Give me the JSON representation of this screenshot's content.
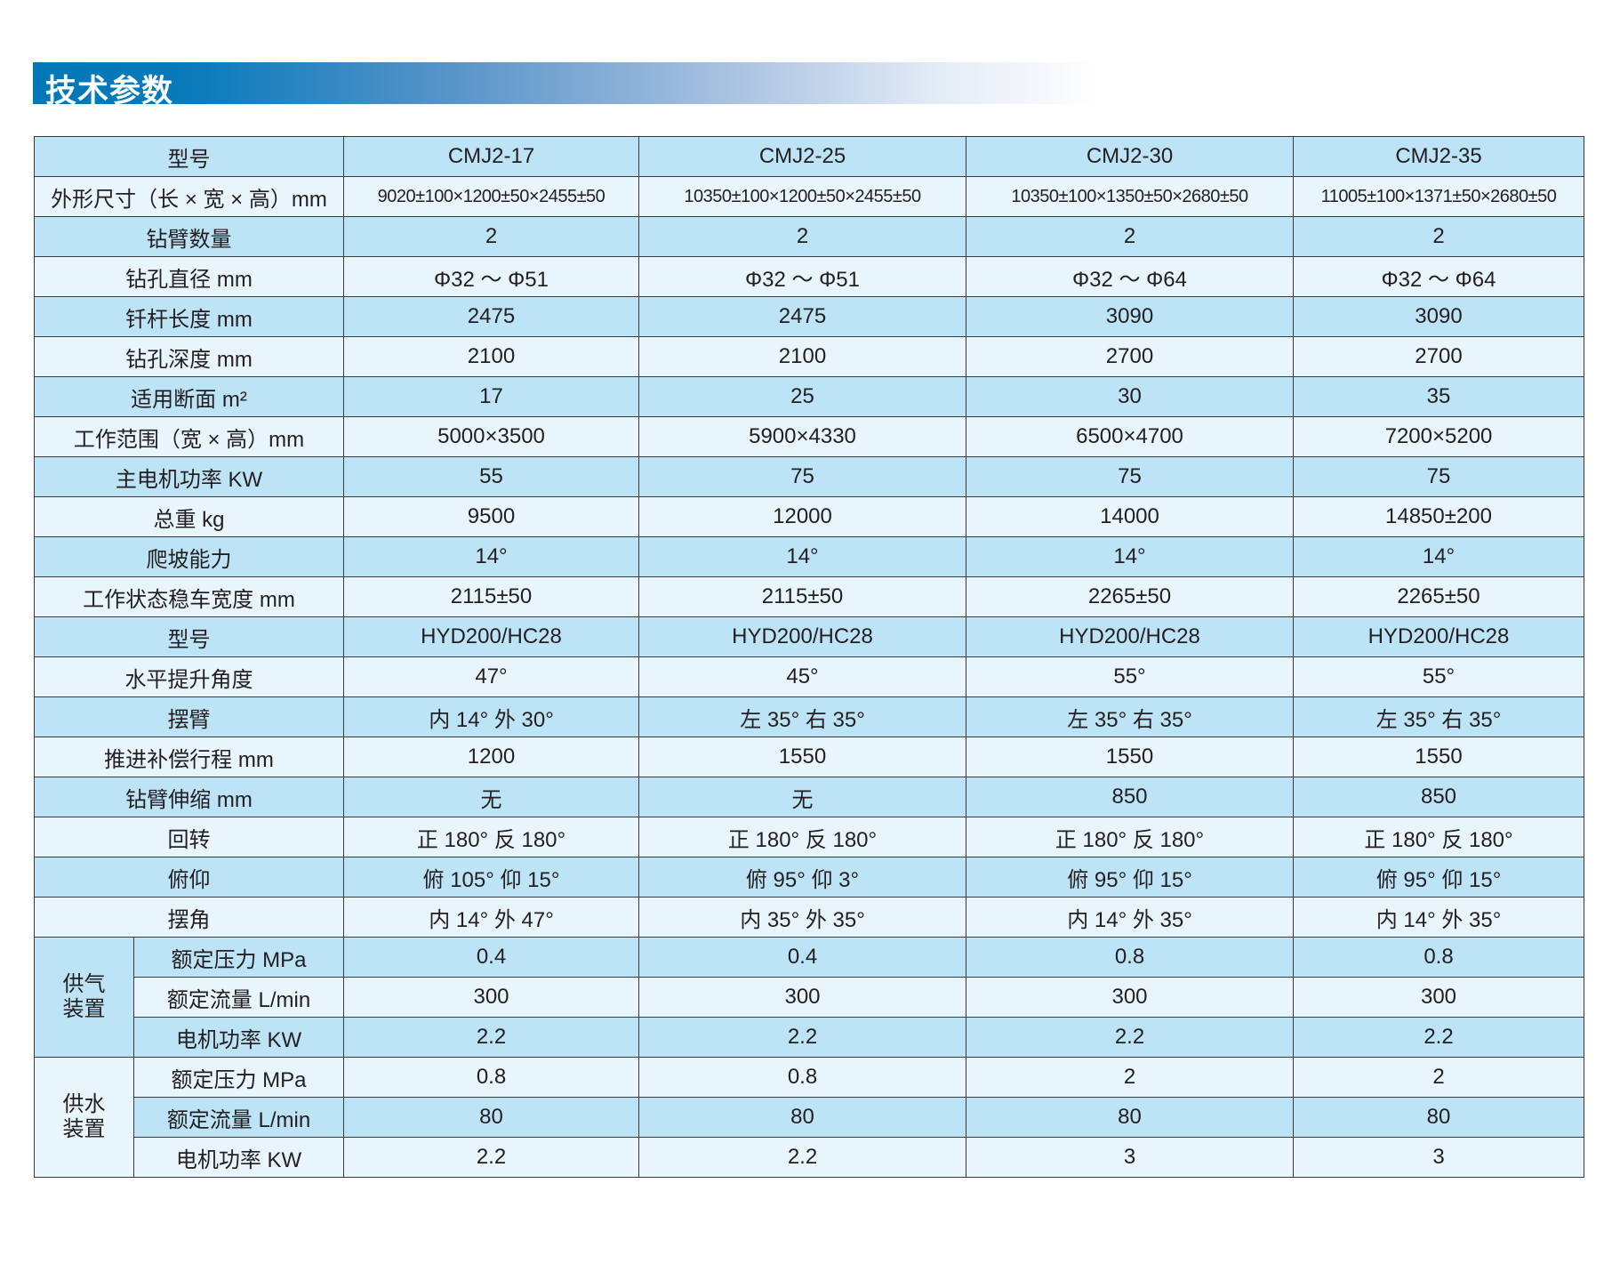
{
  "title": "技术参数",
  "colors": {
    "title_bar": "#0077b6",
    "row_blue": "#bde3f7",
    "row_light": "#e8f5fd"
  },
  "table": {
    "rows": [
      {
        "label": "型号",
        "values": [
          "CMJ2-17",
          "CMJ2-25",
          "CMJ2-30",
          "CMJ2-35"
        ]
      },
      {
        "label": "外形尺寸（长 × 宽 × 高）mm",
        "values": [
          "9020±100×1200±50×2455±50",
          "10350±100×1200±50×2455±50",
          "10350±100×1350±50×2680±50",
          "11005±100×1371±50×2680±50"
        ]
      },
      {
        "label": "钻臂数量",
        "values": [
          "2",
          "2",
          "2",
          "2"
        ]
      },
      {
        "label": "钻孔直径 mm",
        "values": [
          "Φ32 ～ Φ51",
          "Φ32 ～ Φ51",
          "Φ32 ～ Φ64",
          "Φ32 ～ Φ64"
        ]
      },
      {
        "label": "钎杆长度 mm",
        "values": [
          "2475",
          "2475",
          "3090",
          "3090"
        ]
      },
      {
        "label": "钻孔深度 mm",
        "values": [
          "2100",
          "2100",
          "2700",
          "2700"
        ]
      },
      {
        "label": "适用断面 m²",
        "values": [
          "17",
          "25",
          "30",
          "35"
        ]
      },
      {
        "label": "工作范围（宽 × 高）mm",
        "values": [
          "5000×3500",
          "5900×4330",
          "6500×4700",
          "7200×5200"
        ]
      },
      {
        "label": "主电机功率 KW",
        "values": [
          "55",
          "75",
          "75",
          "75"
        ]
      },
      {
        "label": "总重 kg",
        "values": [
          "9500",
          "12000",
          "14000",
          "14850±200"
        ]
      },
      {
        "label": "爬坡能力",
        "values": [
          "14°",
          "14°",
          "14°",
          "14°"
        ]
      },
      {
        "label": "工作状态稳车宽度 mm",
        "values": [
          "2115±50",
          "2115±50",
          "2265±50",
          "2265±50"
        ]
      },
      {
        "label": "型号",
        "values": [
          "HYD200/HC28",
          "HYD200/HC28",
          "HYD200/HC28",
          "HYD200/HC28"
        ]
      },
      {
        "label": "水平提升角度",
        "values": [
          "47°",
          "45°",
          "55°",
          "55°"
        ]
      },
      {
        "label": "摆臂",
        "values": [
          "内 14°  外 30°",
          "左 35°  右 35°",
          "左 35°  右 35°",
          "左 35°  右 35°"
        ]
      },
      {
        "label": "推进补偿行程 mm",
        "values": [
          "1200",
          "1550",
          "1550",
          "1550"
        ]
      },
      {
        "label": "钻臂伸缩 mm",
        "values": [
          "无",
          "无",
          "850",
          "850"
        ]
      },
      {
        "label": "回转",
        "values": [
          "正 180°  反 180°",
          "正 180°  反 180°",
          "正 180°  反 180°",
          "正 180°  反 180°"
        ]
      },
      {
        "label": "俯仰",
        "values": [
          "俯 105°  仰 15°",
          "俯 95°  仰 3°",
          "俯 95°  仰 15°",
          "俯 95°  仰 15°"
        ]
      },
      {
        "label": "摆角",
        "values": [
          "内 14°  外 47°",
          "内 35°  外 35°",
          "内 14°  外 35°",
          "内 14°  外 35°"
        ]
      }
    ],
    "groups": [
      {
        "label": "供气装置",
        "rows": [
          {
            "label": "额定压力 MPa",
            "values": [
              "0.4",
              "0.4",
              "0.8",
              "0.8"
            ]
          },
          {
            "label": "额定流量 L/min",
            "values": [
              "300",
              "300",
              "300",
              "300"
            ]
          },
          {
            "label": "电机功率 KW",
            "values": [
              "2.2",
              "2.2",
              "2.2",
              "2.2"
            ]
          }
        ]
      },
      {
        "label": "供水装置",
        "rows": [
          {
            "label": "额定压力 MPa",
            "values": [
              "0.8",
              "0.8",
              "2",
              "2"
            ]
          },
          {
            "label": "额定流量 L/min",
            "values": [
              "80",
              "80",
              "80",
              "80"
            ]
          },
          {
            "label": "电机功率 KW",
            "values": [
              "2.2",
              "2.2",
              "3",
              "3"
            ]
          }
        ]
      }
    ]
  }
}
